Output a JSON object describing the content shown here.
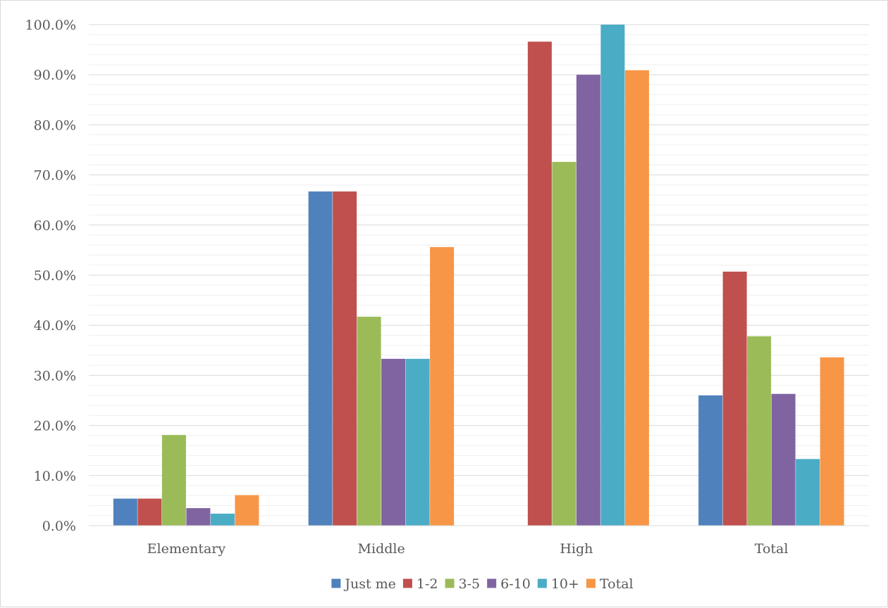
{
  "chart_data": {
    "type": "bar",
    "title": "",
    "xlabel": "",
    "ylabel": "",
    "categories": [
      "Elementary",
      "Middle",
      "High",
      "Total"
    ],
    "series": [
      {
        "name": "Just me",
        "color": "#4f81bd",
        "values": [
          5.4,
          66.7,
          0.0,
          26.0
        ]
      },
      {
        "name": "1-2",
        "color": "#c0504d",
        "values": [
          5.4,
          66.7,
          96.6,
          50.7
        ]
      },
      {
        "name": "3-5",
        "color": "#9bbb59",
        "values": [
          18.1,
          41.7,
          72.6,
          37.8
        ]
      },
      {
        "name": "6-10",
        "color": "#8064a2",
        "values": [
          3.5,
          33.3,
          90.0,
          26.3
        ]
      },
      {
        "name": "10+",
        "color": "#4bacc6",
        "values": [
          2.4,
          33.3,
          100.0,
          13.3
        ]
      },
      {
        "name": "Total",
        "color": "#f79646",
        "values": [
          6.1,
          55.6,
          90.9,
          33.6
        ]
      }
    ],
    "ylim": [
      0,
      100
    ],
    "yticks": [
      "0.0%",
      "10.0%",
      "20.0%",
      "30.0%",
      "40.0%",
      "50.0%",
      "60.0%",
      "70.0%",
      "80.0%",
      "90.0%",
      "100.0%"
    ],
    "grid": true,
    "minor_grid": true,
    "legend_position": "bottom"
  }
}
